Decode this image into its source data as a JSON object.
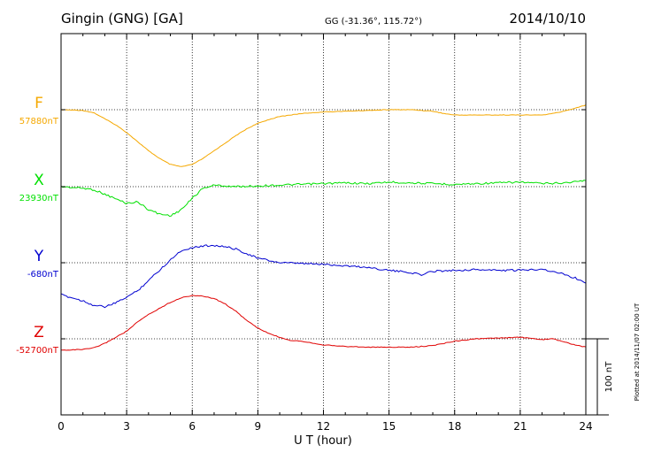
{
  "chart_data": {
    "type": "line",
    "title": "Gingin (GNG)  [GA]",
    "subtitle": "GG (-31.36°, 115.72°)",
    "date": "2014/10/10",
    "xlabel": "U T (hour)",
    "xlim": [
      0,
      24
    ],
    "x_ticks": [
      0,
      3,
      6,
      9,
      12,
      15,
      18,
      21,
      24
    ],
    "grid": true,
    "scale_label": "100 nT",
    "plotted_note": "Plotted at 2014/11/07 02:00 UT",
    "series": [
      {
        "name": "F",
        "base_label": "57880nT",
        "color": "#f5a800",
        "x": [
          0,
          1,
          1.5,
          2,
          2.5,
          3,
          3.5,
          4,
          4.5,
          5,
          5.5,
          6,
          6.5,
          7,
          7.5,
          8,
          8.5,
          9,
          9.5,
          10,
          10.5,
          11,
          12,
          13,
          14,
          15,
          16,
          17,
          17.5,
          18,
          19,
          20,
          21,
          22,
          22.5,
          23,
          23.5,
          24
        ],
        "values": [
          57880,
          57879,
          57876,
          57868,
          57860,
          57850,
          57838,
          57826,
          57816,
          57808,
          57805,
          57808,
          57816,
          57826,
          57836,
          57846,
          57855,
          57862,
          57867,
          57871,
          57873,
          57875,
          57877,
          57878,
          57879,
          57880,
          57880,
          57878,
          57875,
          57873,
          57873,
          57873,
          57873,
          57873,
          57875,
          57878,
          57882,
          57886
        ]
      },
      {
        "name": "X",
        "base_label": "23930nT",
        "color": "#00e000",
        "x": [
          0,
          0.5,
          1,
          1.5,
          2,
          2.5,
          3,
          3.5,
          4,
          4.5,
          5,
          5.3,
          5.7,
          6,
          6.5,
          7,
          7.5,
          8,
          9,
          10,
          11,
          12,
          13,
          14,
          15,
          16,
          17,
          18,
          19,
          20,
          21,
          22,
          23,
          24
        ],
        "values": [
          23930,
          23929,
          23928,
          23926,
          23920,
          23914,
          23908,
          23910,
          23900,
          23894,
          23892,
          23896,
          23905,
          23915,
          23928,
          23932,
          23931,
          23930,
          23931,
          23932,
          23933,
          23934,
          23935,
          23934,
          23936,
          23935,
          23934,
          23933,
          23934,
          23935,
          23936,
          23934,
          23935,
          23938
        ]
      },
      {
        "name": "Y",
        "base_label": "-680nT",
        "color": "#0000d0",
        "x": [
          0,
          0.5,
          1,
          1.5,
          2,
          2.5,
          3,
          3.5,
          4,
          4.5,
          5,
          5.5,
          6,
          6.5,
          7,
          7.5,
          8,
          8.5,
          9,
          10,
          11,
          12,
          13,
          14,
          15,
          16,
          16.5,
          17,
          18,
          19,
          20,
          21,
          22,
          22.5,
          23,
          23.5,
          24
        ],
        "values": [
          -722,
          -726,
          -730,
          -736,
          -738,
          -733,
          -725,
          -717,
          -703,
          -690,
          -676,
          -664,
          -660,
          -658,
          -657,
          -659,
          -662,
          -668,
          -674,
          -680,
          -681,
          -682,
          -684,
          -686,
          -690,
          -693,
          -696,
          -691,
          -690,
          -689,
          -690,
          -690,
          -688,
          -692,
          -695,
          -700,
          -706
        ]
      },
      {
        "name": "Z",
        "base_label": "-52700nT",
        "color": "#e00000",
        "x": [
          0,
          1,
          1.5,
          2,
          2.5,
          3,
          3.5,
          4,
          4.5,
          5,
          5.5,
          6,
          6.5,
          7,
          7.5,
          8,
          8.5,
          9,
          9.5,
          10,
          10.5,
          11,
          12,
          13,
          14,
          15,
          16,
          17,
          18,
          19,
          20,
          21,
          22,
          22.5,
          23,
          23.5,
          24
        ],
        "values": [
          -52715,
          -52714,
          -52712,
          -52706,
          -52698,
          -52690,
          -52678,
          -52668,
          -52660,
          -52652,
          -52646,
          -52643,
          -52644,
          -52647,
          -52654,
          -52664,
          -52676,
          -52686,
          -52693,
          -52698,
          -52702,
          -52703,
          -52708,
          -52710,
          -52711,
          -52711,
          -52711,
          -52709,
          -52703,
          -52700,
          -52699,
          -52698,
          -52701,
          -52700,
          -52704,
          -52708,
          -52711
        ]
      }
    ]
  }
}
